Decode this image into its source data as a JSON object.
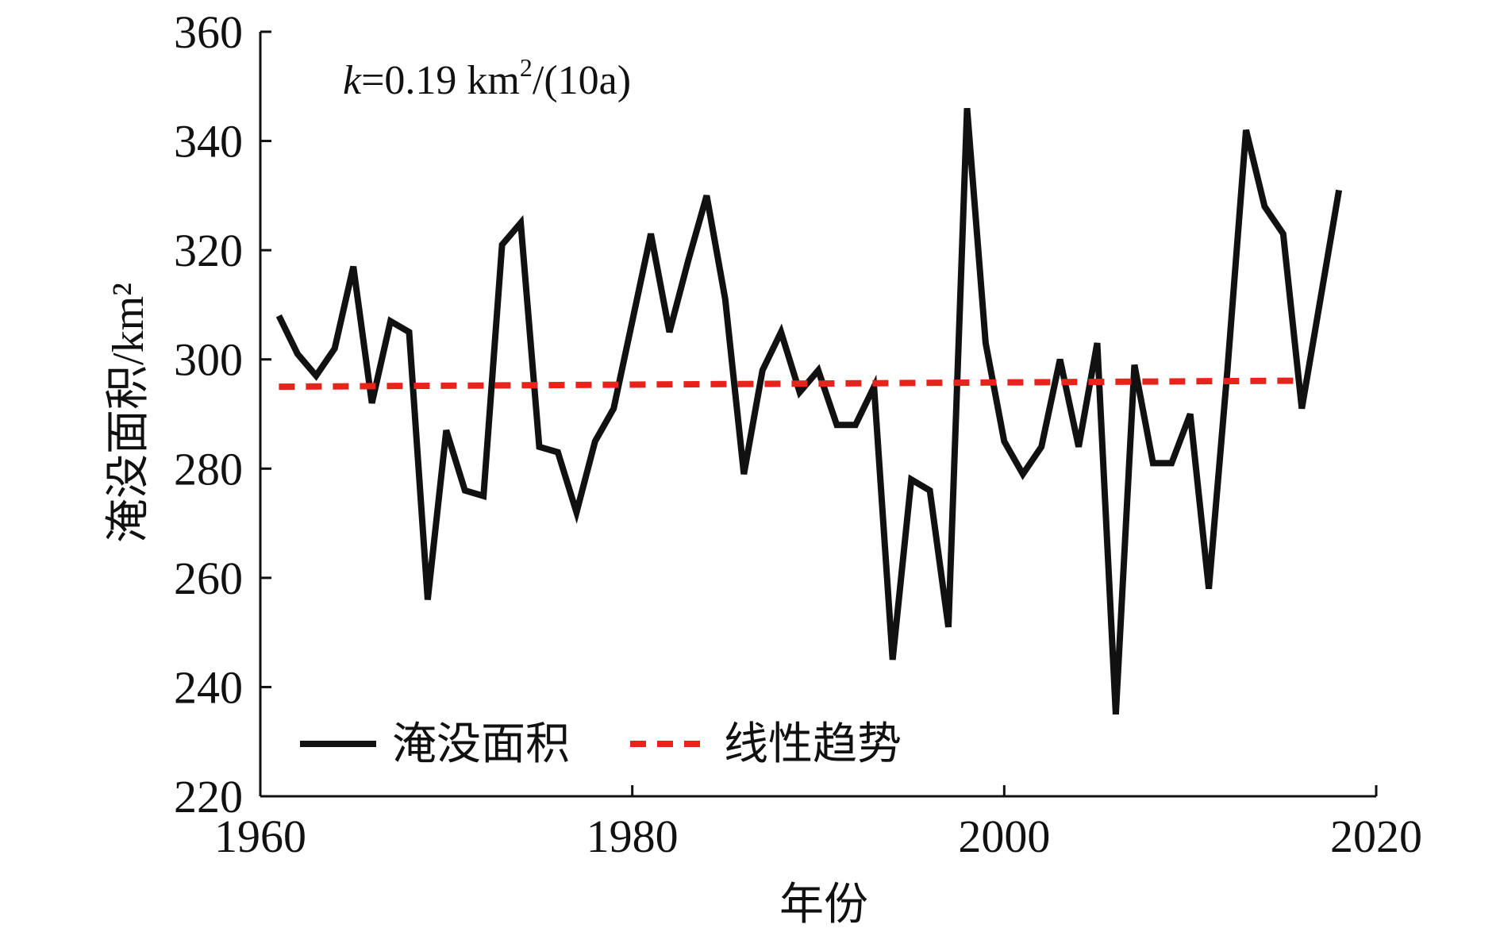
{
  "chart_data": {
    "type": "line",
    "title": "",
    "xlabel": "年份",
    "ylabel": "淹没面积/km²",
    "xlim": [
      1960,
      2020
    ],
    "ylim": [
      220,
      360
    ],
    "xticks": [
      "1960",
      "1980",
      "2000",
      "2020"
    ],
    "yticks": [
      "220",
      "240",
      "260",
      "280",
      "300",
      "320",
      "340",
      "360"
    ],
    "grid": false,
    "legend_position": "bottom-left",
    "annotation": {
      "k_symbol": "k",
      "rest": "=0.19 km",
      "superscript": "2",
      "unit_tail": "/(10a)"
    },
    "series": [
      {
        "name": "淹没面积",
        "color": "#111111",
        "style": "solid",
        "x": [
          1961,
          1962,
          1963,
          1964,
          1965,
          1966,
          1967,
          1968,
          1969,
          1970,
          1971,
          1972,
          1973,
          1974,
          1975,
          1976,
          1977,
          1978,
          1979,
          1980,
          1981,
          1982,
          1983,
          1984,
          1985,
          1986,
          1987,
          1988,
          1989,
          1990,
          1991,
          1992,
          1993,
          1994,
          1995,
          1996,
          1997,
          1998,
          1999,
          2000,
          2001,
          2002,
          2003,
          2004,
          2005,
          2006,
          2007,
          2008,
          2009,
          2010,
          2011,
          2012,
          2013,
          2014,
          2015,
          2016,
          2017,
          2018
        ],
        "y": [
          308,
          301,
          297,
          302,
          317,
          292,
          307,
          305,
          256,
          287,
          276,
          275,
          321,
          325,
          284,
          283,
          272,
          285,
          291,
          307,
          323,
          305,
          318,
          330,
          311,
          279,
          298,
          305,
          294,
          298,
          288,
          288,
          295,
          245,
          278,
          276,
          251,
          346,
          303,
          285,
          279,
          284,
          300,
          284,
          303,
          235,
          299,
          281,
          281,
          290,
          258,
          298,
          342,
          328,
          323,
          291,
          311,
          331
        ]
      },
      {
        "name": "线性趋势",
        "color": "#e8231c",
        "style": "dashed",
        "x": [
          1961,
          2016
        ],
        "y": [
          295.0,
          296.1
        ]
      }
    ]
  }
}
